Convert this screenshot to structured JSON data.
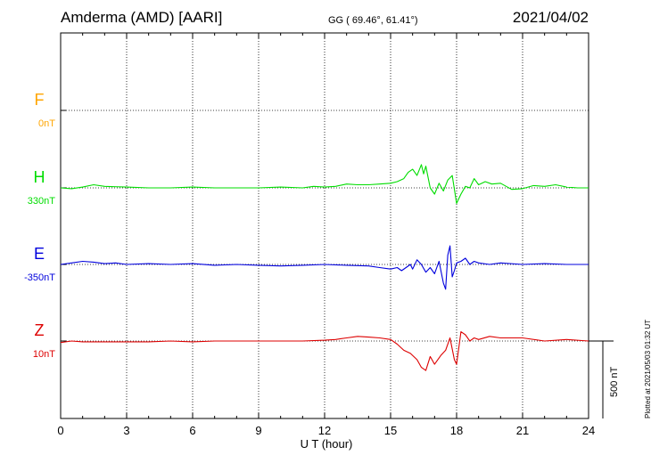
{
  "header": {
    "station": "Amderma (AMD)  [AARI]",
    "coords": "GG ( 69.46°,  61.41°)",
    "date": "2021/04/02"
  },
  "footer_note": "Plotted at 2021/05/03 01:32 UT",
  "colors": {
    "F": "#ffa500",
    "H": "#00dd00",
    "E": "#0000dd",
    "Z": "#dd0000"
  },
  "chart_data": {
    "type": "line",
    "title": "",
    "xlabel": "U T (hour)",
    "xlim": [
      0,
      24
    ],
    "xticks": [
      "0",
      "3",
      "6",
      "9",
      "12",
      "15",
      "18",
      "21",
      "24"
    ],
    "grid": true,
    "scale_bar": "500 nT",
    "series": [
      {
        "name": "F",
        "offset_label": "0nT",
        "x": [],
        "values": []
      },
      {
        "name": "H",
        "offset_label": "330nT",
        "x": [
          0,
          0.5,
          1,
          1.5,
          2,
          3,
          4,
          5,
          6,
          7,
          8,
          9,
          10,
          11,
          11.5,
          12,
          12.5,
          13,
          13.5,
          14,
          14.5,
          15,
          15.3,
          15.6,
          15.8,
          16,
          16.2,
          16.4,
          16.5,
          16.6,
          16.8,
          17,
          17.2,
          17.4,
          17.6,
          17.8,
          18,
          18.2,
          18.4,
          18.6,
          18.8,
          19,
          19.3,
          19.6,
          20,
          20.5,
          21,
          21.5,
          22,
          22.5,
          23,
          23.5,
          24
        ],
        "values": [
          0,
          -5,
          5,
          20,
          10,
          5,
          0,
          0,
          5,
          0,
          0,
          0,
          5,
          0,
          10,
          5,
          10,
          25,
          20,
          20,
          25,
          30,
          40,
          60,
          100,
          120,
          80,
          150,
          90,
          140,
          0,
          -40,
          30,
          -20,
          50,
          80,
          -100,
          -40,
          10,
          0,
          60,
          20,
          40,
          25,
          30,
          -10,
          -5,
          15,
          10,
          20,
          5,
          0,
          0
        ]
      },
      {
        "name": "E",
        "offset_label": "-350nT",
        "x": [
          0,
          0.5,
          1,
          1.5,
          2,
          2.5,
          3,
          4,
          5,
          6,
          7,
          8,
          9,
          10,
          11,
          12,
          13,
          14,
          14.5,
          15,
          15.3,
          15.5,
          15.7,
          15.9,
          16,
          16.2,
          16.4,
          16.6,
          16.8,
          17,
          17.2,
          17.4,
          17.5,
          17.6,
          17.7,
          17.8,
          17.9,
          18,
          18.2,
          18.4,
          18.6,
          18.8,
          19,
          19.5,
          20,
          21,
          22,
          23,
          24
        ],
        "values": [
          0,
          10,
          20,
          15,
          5,
          10,
          0,
          5,
          0,
          5,
          -5,
          0,
          -5,
          -10,
          -5,
          0,
          -5,
          -10,
          -20,
          -30,
          -20,
          -40,
          -20,
          0,
          -30,
          30,
          0,
          -50,
          -20,
          -60,
          20,
          -120,
          -160,
          60,
          120,
          -80,
          -40,
          10,
          20,
          40,
          0,
          20,
          10,
          0,
          10,
          0,
          5,
          0,
          0
        ]
      },
      {
        "name": "Z",
        "offset_label": "10nT",
        "x": [
          0,
          0.5,
          1,
          1.5,
          2,
          3,
          4,
          5,
          6,
          7,
          8,
          9,
          10,
          11,
          12,
          12.5,
          13,
          13.5,
          14,
          14.5,
          15,
          15.3,
          15.6,
          15.9,
          16.2,
          16.4,
          16.6,
          16.8,
          17,
          17.3,
          17.5,
          17.7,
          17.9,
          18,
          18.2,
          18.4,
          18.6,
          18.8,
          19,
          19.5,
          20,
          21,
          22,
          23,
          24
        ],
        "values": [
          -10,
          0,
          -5,
          -5,
          -5,
          -5,
          -5,
          0,
          -5,
          0,
          0,
          0,
          0,
          0,
          5,
          10,
          20,
          30,
          25,
          20,
          10,
          -20,
          -60,
          -80,
          -120,
          -170,
          -190,
          -100,
          -150,
          -90,
          -60,
          20,
          -120,
          -150,
          60,
          40,
          0,
          20,
          10,
          30,
          20,
          20,
          0,
          10,
          0
        ]
      }
    ]
  }
}
